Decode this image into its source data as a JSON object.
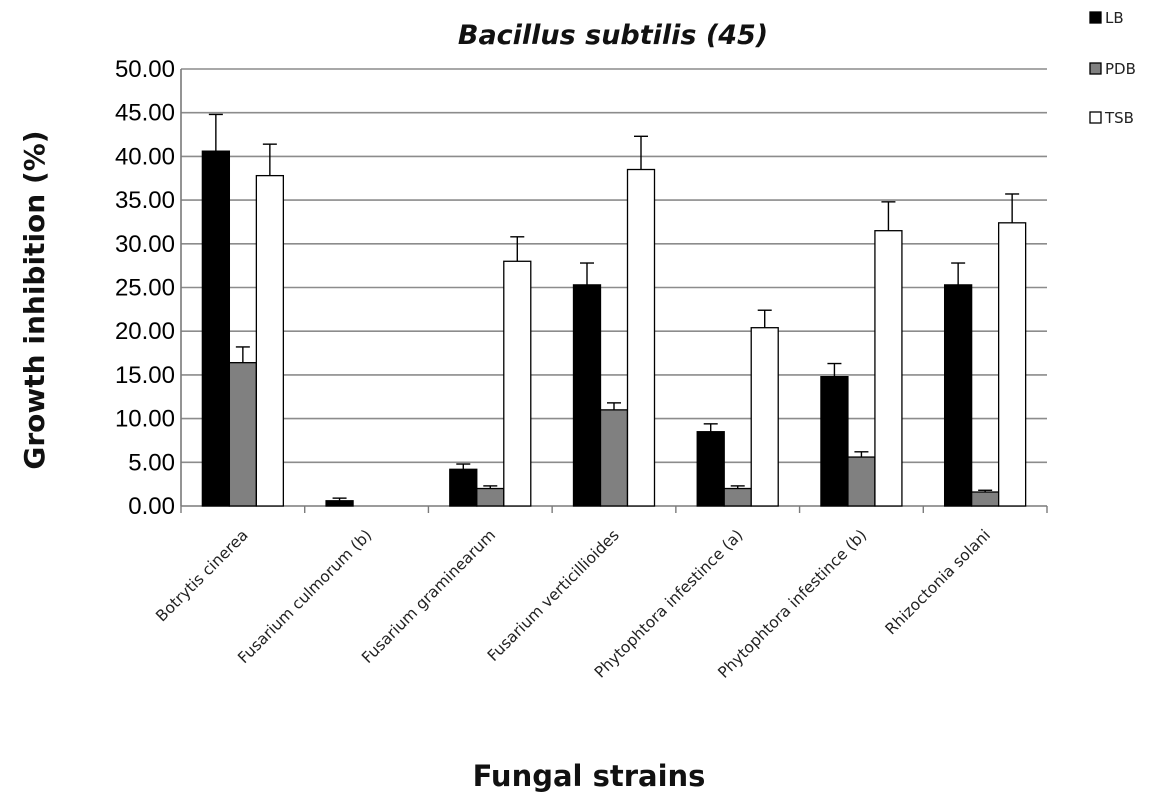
{
  "chart_data": {
    "type": "bar",
    "title": "Bacillus subtilis (45)",
    "xlabel": "Fungal strains",
    "ylabel": "Growth inhibition (%)",
    "ylim": [
      0,
      50
    ],
    "yticks": [
      "0.00",
      "5.00",
      "10.00",
      "15.00",
      "20.00",
      "25.00",
      "30.00",
      "35.00",
      "40.00",
      "45.00",
      "50.00"
    ],
    "grid": true,
    "legend_position": "top-right",
    "categories": [
      "Botrytis cinerea",
      "Fusarium culmorum (b)",
      "Fusarium graminearum",
      "Fusarium verticillioides",
      "Phytophtora infestince (a)",
      "Phytophtora infestince (b)",
      "Rhizoctonia solani"
    ],
    "series": [
      {
        "name": "LB",
        "color": "#000000",
        "values": [
          40.6,
          0.6,
          4.2,
          25.3,
          8.5,
          14.8,
          25.3
        ],
        "errors": [
          4.2,
          0.3,
          0.6,
          2.5,
          0.9,
          1.5,
          2.5
        ]
      },
      {
        "name": "PDB",
        "color": "#808080",
        "values": [
          16.4,
          0,
          2.0,
          11.0,
          2.0,
          5.6,
          1.6
        ],
        "errors": [
          1.8,
          0,
          0.3,
          0.8,
          0.3,
          0.6,
          0.2
        ]
      },
      {
        "name": "TSB",
        "color": "#ffffff",
        "values": [
          37.8,
          0,
          28.0,
          38.5,
          20.4,
          31.5,
          32.4
        ],
        "errors": [
          3.6,
          0,
          2.8,
          3.8,
          2.0,
          3.3,
          3.3
        ]
      }
    ]
  }
}
